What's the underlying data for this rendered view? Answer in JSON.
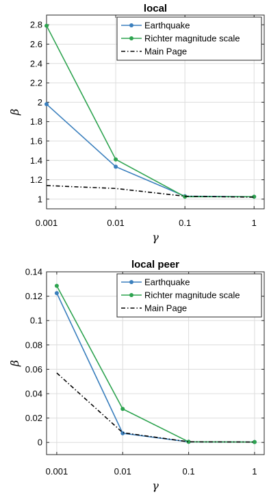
{
  "chart_data": [
    {
      "type": "line",
      "title": "local",
      "xlabel": "γ",
      "ylabel": "β",
      "x_scale": "log",
      "xlim": [
        0.001,
        1.4
      ],
      "ylim": [
        0.9,
        2.9
      ],
      "x": [
        0.001,
        0.01,
        0.1,
        1
      ],
      "x_tick_labels": [
        "0.001",
        "0.01",
        "0.1",
        "1"
      ],
      "y_ticks": [
        1,
        1.2,
        1.4,
        1.6,
        1.8,
        2,
        2.2,
        2.4,
        2.6,
        2.8
      ],
      "y_tick_labels": [
        "1",
        "1.2",
        "1.4",
        "1.6",
        "1.8",
        "2",
        "2.2",
        "2.4",
        "2.6",
        "2.8"
      ],
      "grid": true,
      "legend_position": "top-right",
      "series": [
        {
          "name": "Earthquake",
          "color": "#3a7fbd",
          "style": "solid-markers",
          "values": [
            1.98,
            1.335,
            1.03,
            1.025
          ]
        },
        {
          "name": "Richter magnitude scale",
          "color": "#2da34f",
          "style": "solid-markers",
          "values": [
            2.79,
            1.41,
            1.025,
            1.025
          ]
        },
        {
          "name": "Main Page",
          "color": "#000000",
          "style": "dash-dot",
          "values": [
            1.14,
            1.11,
            1.03,
            1.02
          ]
        }
      ]
    },
    {
      "type": "line",
      "title": "local peer",
      "xlabel": "γ",
      "ylabel": "β",
      "x_scale": "log",
      "xlim": [
        0.0007,
        1.4
      ],
      "ylim": [
        -0.01,
        0.14
      ],
      "x": [
        0.001,
        0.01,
        0.1,
        1
      ],
      "x_tick_labels": [
        "0.001",
        "0.01",
        "0.1",
        "1"
      ],
      "y_ticks": [
        0,
        0.02,
        0.04,
        0.06,
        0.08,
        0.1,
        0.12,
        0.14
      ],
      "y_tick_labels": [
        "0",
        "0.02",
        "0.04",
        "0.06",
        "0.08",
        "0.1",
        "0.12",
        "0.14"
      ],
      "grid": true,
      "legend_position": "top-right",
      "series": [
        {
          "name": "Earthquake",
          "color": "#3a7fbd",
          "style": "solid-markers",
          "values": [
            0.1225,
            0.0075,
            0.0005,
            0.0003
          ]
        },
        {
          "name": "Richter magnitude scale",
          "color": "#2da34f",
          "style": "solid-markers",
          "values": [
            0.1285,
            0.0275,
            0.0005,
            0.0003
          ]
        },
        {
          "name": "Main Page",
          "color": "#000000",
          "style": "dash-dot",
          "values": [
            0.057,
            0.008,
            0.0005,
            0.0003
          ]
        }
      ]
    }
  ]
}
